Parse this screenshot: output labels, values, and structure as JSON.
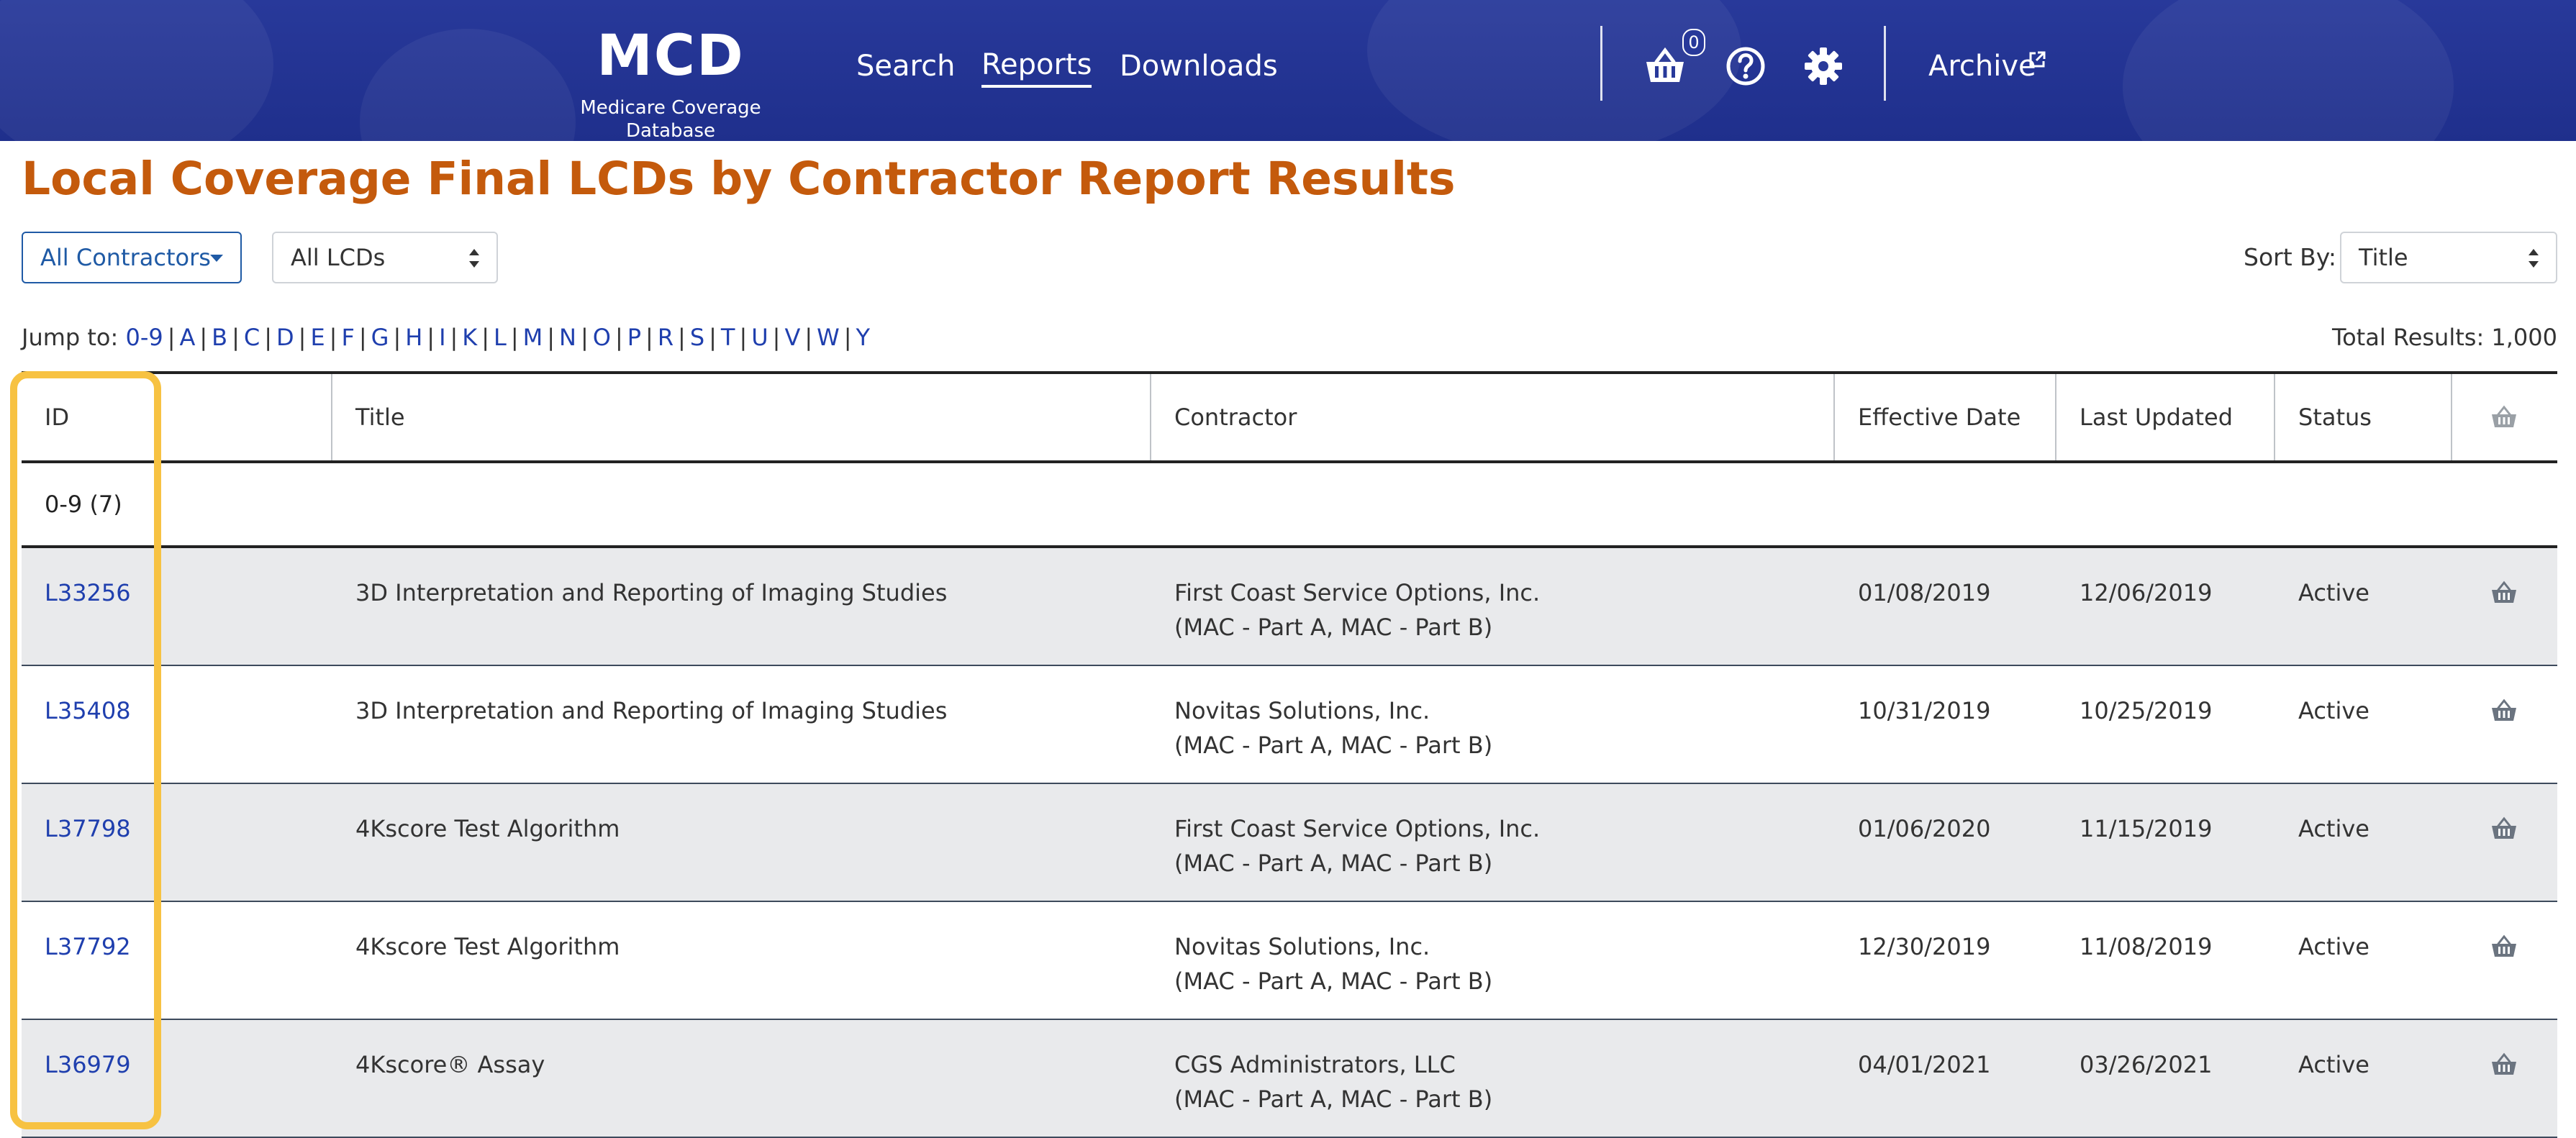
{
  "header": {
    "logo": "MCD",
    "logo_subtitle": "Medicare Coverage Database",
    "nav": [
      "Search",
      "Reports",
      "Downloads"
    ],
    "active_nav": "Reports",
    "cart_count": "0",
    "archive": "Archive",
    "icons": [
      "basket-icon",
      "help-icon",
      "gear-icon",
      "external-link-icon"
    ]
  },
  "page_title": "Local Coverage Final LCDs by Contractor Report Results",
  "filters": {
    "contractors_button": "All Contractors",
    "lcd_select": "All LCDs",
    "sort_label": "Sort By:",
    "sort_select": "Title"
  },
  "jump": {
    "label": "Jump to:",
    "letters": [
      "0-9",
      "A",
      "B",
      "C",
      "D",
      "E",
      "F",
      "G",
      "H",
      "I",
      "K",
      "L",
      "M",
      "N",
      "O",
      "P",
      "R",
      "S",
      "T",
      "U",
      "V",
      "W",
      "Y"
    ]
  },
  "total_results": "Total Results: 1,000",
  "table": {
    "columns": [
      "ID",
      "Title",
      "Contractor",
      "Effective Date",
      "Last Updated",
      "Status"
    ],
    "group_label": "0-9 (7)",
    "rows": [
      {
        "id": "L33256",
        "title": "3D Interpretation and Reporting of Imaging Studies",
        "contractor": "First Coast Service Options, Inc.",
        "contractor_type": "(MAC - Part A, MAC - Part B)",
        "effective": "01/08/2019",
        "updated": "12/06/2019",
        "status": "Active"
      },
      {
        "id": "L35408",
        "title": "3D Interpretation and Reporting of Imaging Studies",
        "contractor": "Novitas Solutions, Inc.",
        "contractor_type": "(MAC - Part A, MAC - Part B)",
        "effective": "10/31/2019",
        "updated": "10/25/2019",
        "status": "Active"
      },
      {
        "id": "L37798",
        "title": "4Kscore Test Algorithm",
        "contractor": "First Coast Service Options, Inc.",
        "contractor_type": "(MAC - Part A, MAC - Part B)",
        "effective": "01/06/2020",
        "updated": "11/15/2019",
        "status": "Active"
      },
      {
        "id": "L37792",
        "title": "4Kscore Test Algorithm",
        "contractor": "Novitas Solutions, Inc.",
        "contractor_type": "(MAC - Part A, MAC - Part B)",
        "effective": "12/30/2019",
        "updated": "11/08/2019",
        "status": "Active"
      },
      {
        "id": "L36979",
        "title": "4Kscore® Assay",
        "contractor": "CGS Administrators, LLC",
        "contractor_type": "(MAC - Part A, MAC - Part B)",
        "effective": "04/01/2021",
        "updated": "03/26/2021",
        "status": "Active"
      }
    ]
  },
  "colors": {
    "header_bg": "#28399a",
    "title": "#c45a0c",
    "link": "#1f3fae",
    "highlight": "#f7c242",
    "row_alt": "#e9eaec"
  }
}
